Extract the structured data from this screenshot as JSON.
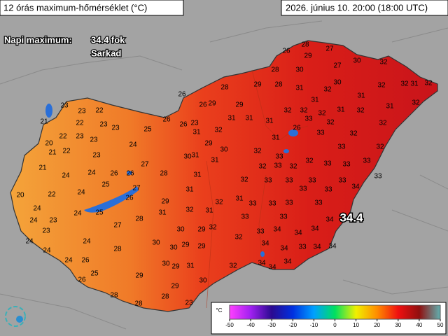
{
  "header": {
    "title": "12 órás maximum-hőmérséklet (°C)",
    "datetime": "2026. június 10. 20:00 (18:00 UTC)"
  },
  "summary": {
    "label": "Napi maximum:",
    "value": "34.4 fok",
    "place": "Sarkad",
    "max_marker": 34.4
  },
  "stations": [
    28,
    26,
    27,
    29,
    30,
    32,
    27,
    28,
    30,
    30,
    32,
    32,
    31,
    32,
    28,
    29,
    28,
    31,
    32,
    31,
    26,
    26,
    29,
    29,
    31,
    32,
    31,
    32,
    31,
    32,
    32,
    32,
    23,
    23,
    22,
    31,
    31,
    31,
    23,
    26,
    26,
    33,
    32,
    32,
    21,
    22,
    23,
    23,
    25,
    26,
    32,
    31,
    33,
    32,
    22,
    23,
    23,
    31,
    24,
    29,
    20,
    33,
    32,
    22,
    21,
    30,
    32,
    23,
    31,
    30,
    31,
    21,
    33,
    33,
    32,
    33,
    33,
    27,
    32,
    33,
    32,
    24,
    26,
    26,
    28,
    31,
    24,
    33,
    33,
    32,
    33,
    33,
    33,
    33,
    25,
    24,
    33,
    34,
    20,
    22,
    27,
    26,
    31,
    31,
    29,
    32,
    33,
    33,
    33,
    33,
    24,
    32,
    31,
    24,
    25,
    31,
    28,
    33,
    33,
    34,
    23,
    24,
    27,
    30,
    29,
    32,
    33,
    34,
    23,
    24,
    24,
    32,
    34,
    34,
    29,
    29,
    30,
    34,
    30,
    28,
    34,
    33,
    34,
    34,
    24,
    24,
    26,
    30,
    29,
    31,
    32,
    34,
    34,
    34,
    25,
    29,
    26,
    30,
    29,
    28,
    28,
    28,
    23
  ],
  "colorbar": {
    "unit": "°C",
    "ticks": [
      -50,
      -40,
      -30,
      -20,
      -10,
      0,
      10,
      20,
      30,
      40,
      50
    ],
    "colors": [
      "#ff40ff",
      "#a020f0",
      "#2a0a90",
      "#0030e0",
      "#00a0ff",
      "#00e060",
      "#f0f000",
      "#ff8c00",
      "#f01010",
      "#901010",
      "#60b0b0"
    ]
  }
}
